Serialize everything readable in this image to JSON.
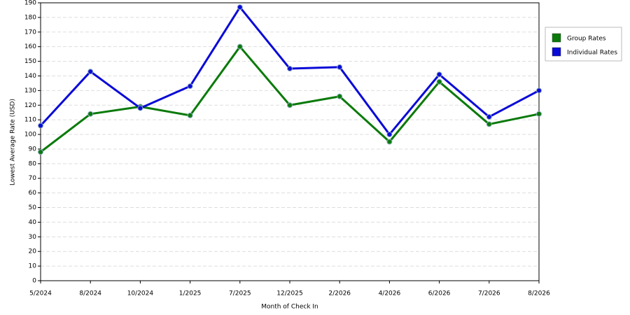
{
  "chart_data": {
    "type": "line",
    "x_label": "Month of Check In",
    "y_label": "Lowest Average Rate (USD)",
    "categories": [
      "5/2024",
      "8/2024",
      "10/2024",
      "1/2025",
      "7/2025",
      "12/2025",
      "2/2026",
      "4/2026",
      "6/2026",
      "7/2026",
      "8/2026"
    ],
    "series": [
      {
        "name": "Group Rates",
        "color": "#0a7a0a",
        "values": [
          88,
          114,
          119,
          113,
          160,
          120,
          126,
          95,
          136,
          107,
          114
        ]
      },
      {
        "name": "Individual Rates",
        "color": "#0a0ad8",
        "values": [
          106,
          143,
          118,
          133,
          187,
          145,
          146,
          100,
          141,
          112,
          130
        ]
      }
    ],
    "ylim": [
      0,
      190
    ],
    "yticks": [
      0,
      10,
      20,
      30,
      40,
      50,
      60,
      70,
      80,
      90,
      100,
      110,
      120,
      130,
      140,
      150,
      160,
      170,
      180,
      190
    ],
    "grid": true,
    "legend": "right"
  }
}
